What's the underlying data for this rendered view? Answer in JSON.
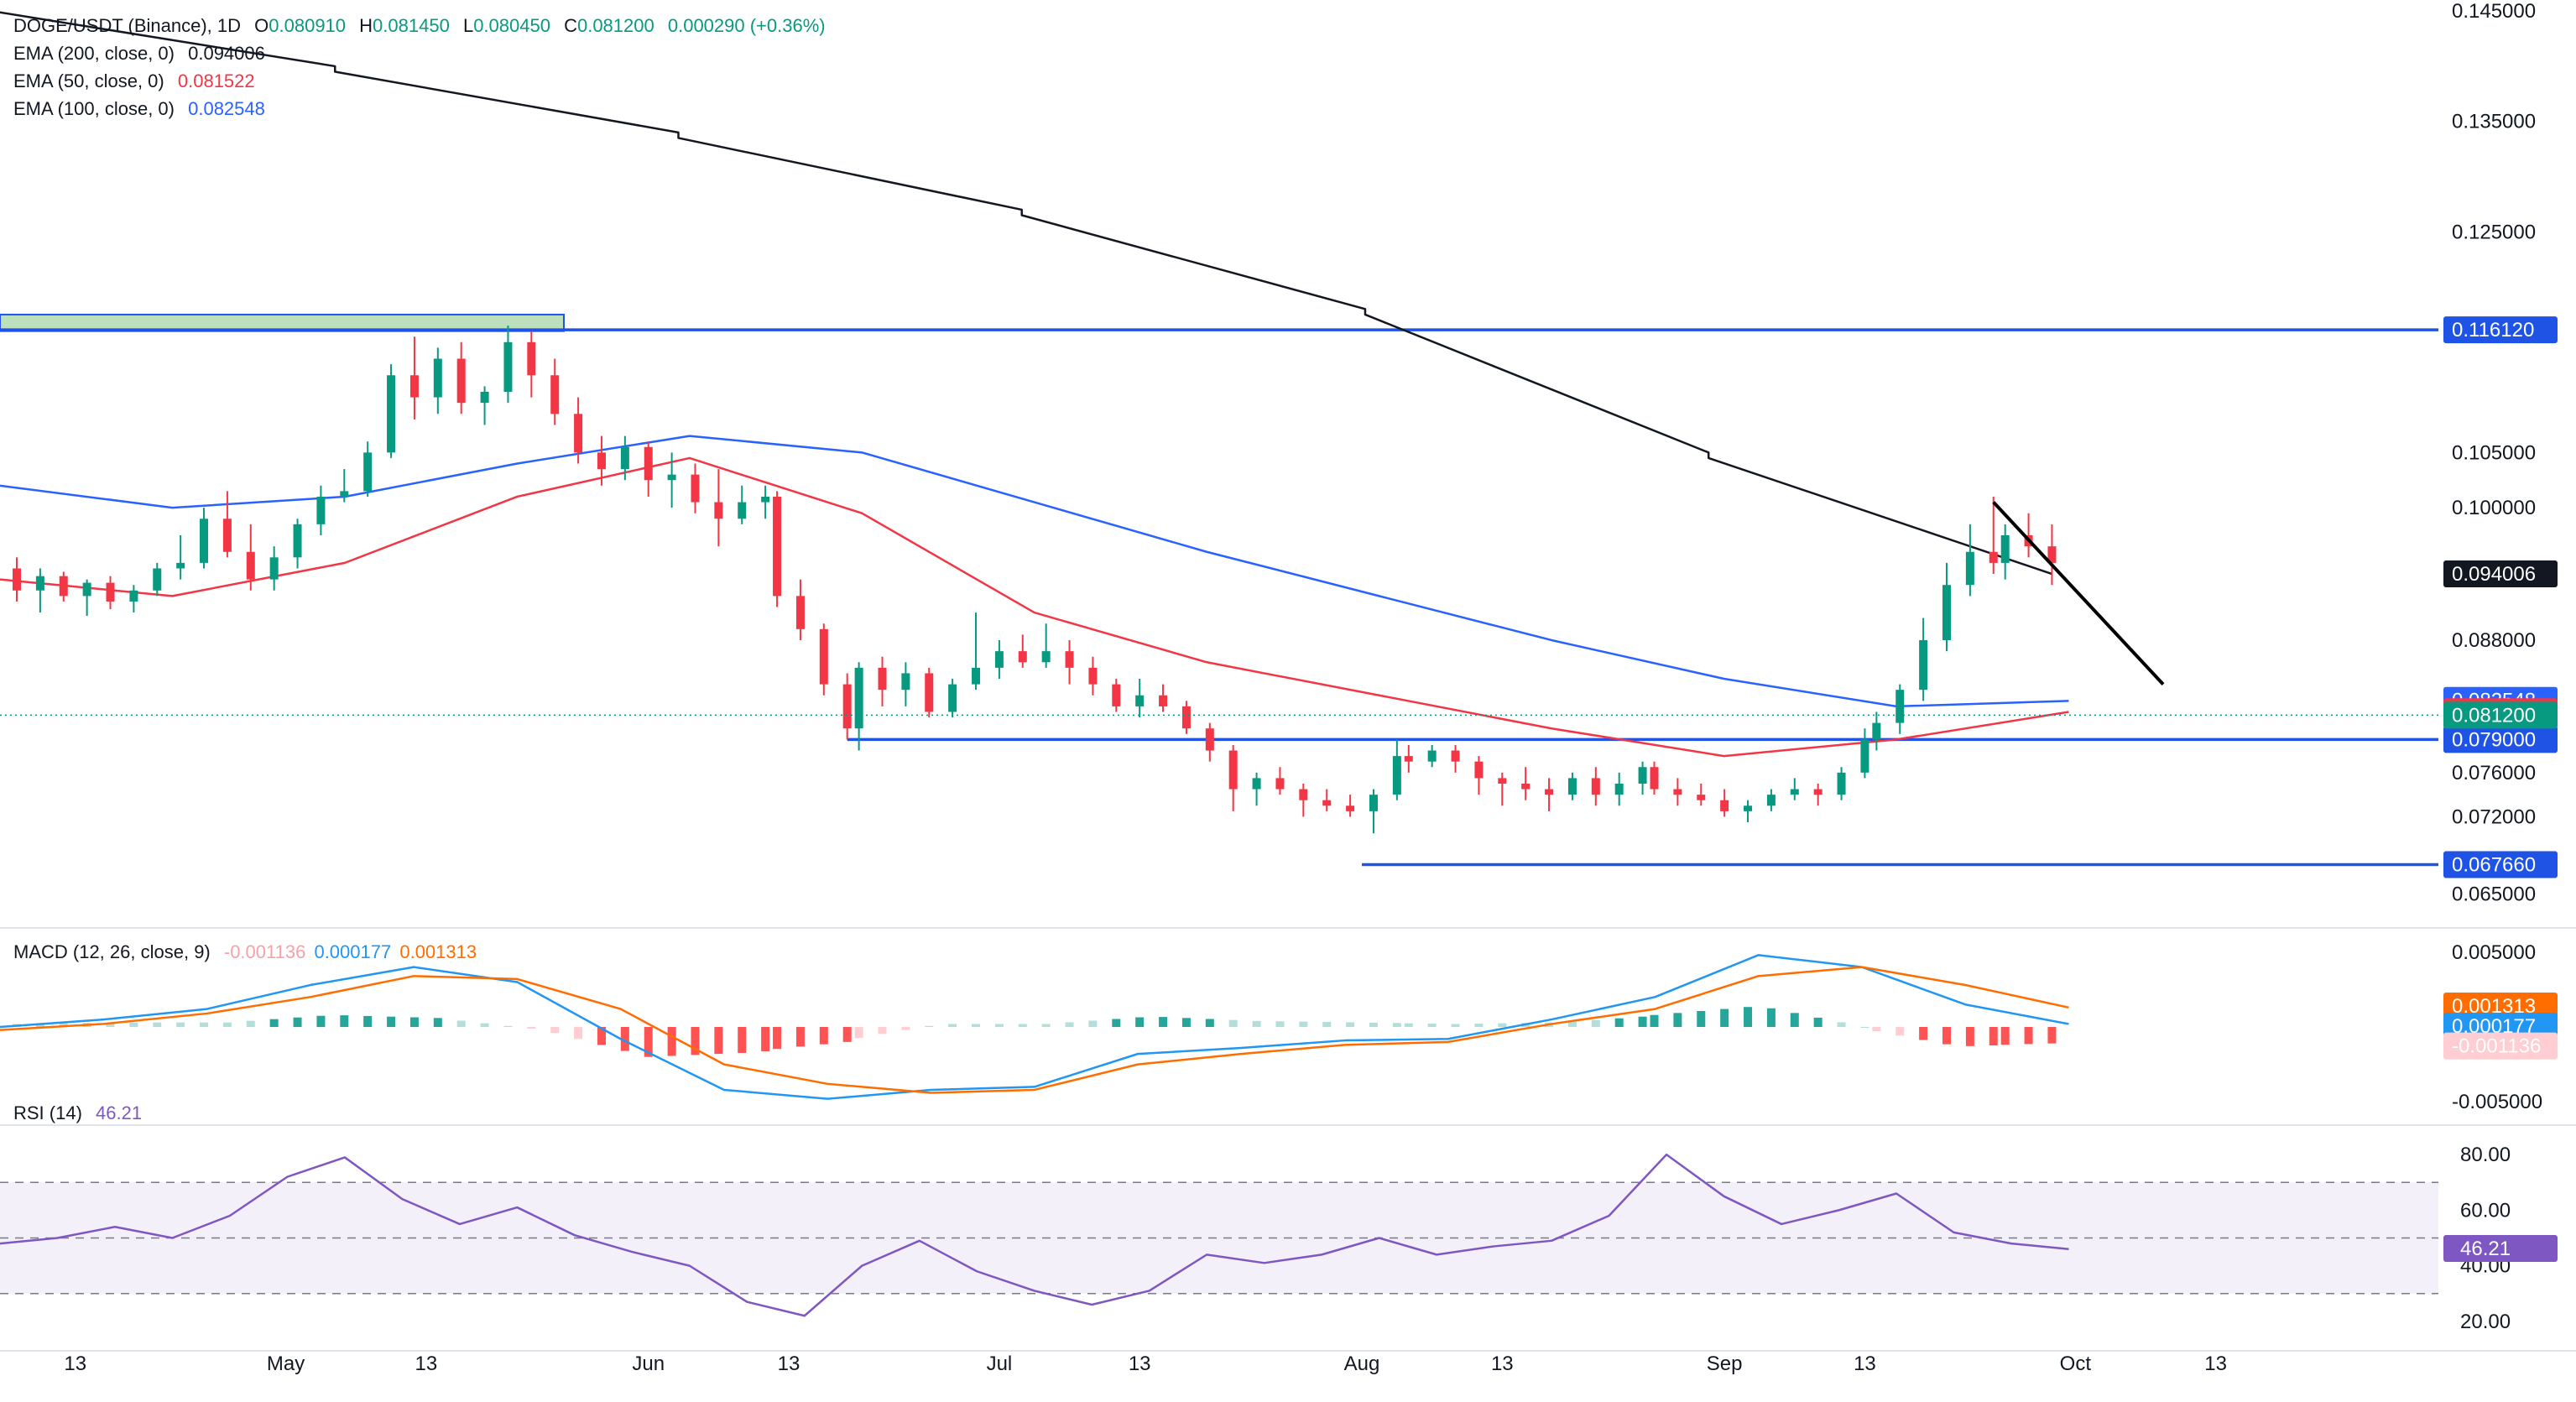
{
  "header": {
    "symbol": "DOGE/USDT (Binance), 1D",
    "o_label": "O",
    "o_value": "0.080910",
    "h_label": "H",
    "h_value": "0.081450",
    "l_label": "L",
    "l_value": "0.080450",
    "c_label": "C",
    "c_value": "0.081200",
    "change": "0.000290 (+0.36%)"
  },
  "indicators": [
    {
      "label": "EMA (200, close, 0)",
      "value": "0.094006",
      "color": "#131722"
    },
    {
      "label": "EMA (50, close, 0)",
      "value": "0.081522",
      "color": "#f23645"
    },
    {
      "label": "EMA (100, close, 0)",
      "value": "0.082548",
      "color": "#2962ff"
    }
  ],
  "macd_legend": {
    "label": "MACD (12, 26, close, 9)",
    "hist": "-0.001136",
    "macd": "0.000177",
    "signal": "0.001313"
  },
  "rsi_legend": {
    "label": "RSI (14)",
    "value": "46.21"
  },
  "colors": {
    "up": "#089981",
    "down": "#f23645",
    "ema200": "#131722",
    "ema50": "#f23645",
    "ema100": "#2962ff",
    "level": "#1e53e5",
    "macd": "#2196f3",
    "signal": "#ff6d00",
    "rsi": "#7e57c2",
    "zone": "#a5d6a7"
  },
  "chart_data": [
    {
      "type": "candlestick",
      "title": "DOGE/USDT (Binance), 1D",
      "y_ticks": [
        "0.145000",
        "0.135000",
        "0.125000",
        "0.105000",
        "0.100000",
        "0.088000",
        "0.076000",
        "0.072000",
        "0.065000"
      ],
      "x_ticks": [
        "13",
        "May",
        "13",
        "Jun",
        "13",
        "Jul",
        "13",
        "Aug",
        "13",
        "Sep",
        "13",
        "Oct",
        "13"
      ],
      "x_tick_dates": [
        "2024-04-13",
        "2024-05-01",
        "2024-05-13",
        "2024-06-01",
        "2024-06-13",
        "2024-07-01",
        "2024-07-13",
        "2024-08-01",
        "2024-08-13",
        "2024-09-01",
        "2024-09-13",
        "2024-10-01",
        "2024-10-13"
      ],
      "x_range": [
        "2024-04-08",
        "2024-10-23"
      ],
      "y_range": [
        0.062,
        0.146
      ],
      "ohlc_columns": [
        "date",
        "open",
        "high",
        "low",
        "close"
      ],
      "ohlc": [
        [
          "2024-04-08",
          0.0945,
          0.0955,
          0.0915,
          0.0925
        ],
        [
          "2024-04-10",
          0.0925,
          0.0945,
          0.0905,
          0.0938
        ],
        [
          "2024-04-12",
          0.0938,
          0.0942,
          0.0915,
          0.092
        ],
        [
          "2024-04-14",
          0.092,
          0.0935,
          0.0902,
          0.0932
        ],
        [
          "2024-04-16",
          0.0932,
          0.0938,
          0.0908,
          0.0915
        ],
        [
          "2024-04-18",
          0.0915,
          0.093,
          0.0905,
          0.0925
        ],
        [
          "2024-04-20",
          0.0925,
          0.095,
          0.092,
          0.0945
        ],
        [
          "2024-04-22",
          0.0945,
          0.0975,
          0.0935,
          0.095
        ],
        [
          "2024-04-24",
          0.095,
          0.1,
          0.0945,
          0.099
        ],
        [
          "2024-04-26",
          0.099,
          0.1015,
          0.0955,
          0.096
        ],
        [
          "2024-04-28",
          0.096,
          0.0985,
          0.0925,
          0.0935
        ],
        [
          "2024-04-30",
          0.0935,
          0.0965,
          0.0925,
          0.0955
        ],
        [
          "2024-05-02",
          0.0955,
          0.099,
          0.0945,
          0.0985
        ],
        [
          "2024-05-04",
          0.0985,
          0.102,
          0.0975,
          0.101
        ],
        [
          "2024-05-06",
          0.101,
          0.1035,
          0.1005,
          0.1015
        ],
        [
          "2024-05-08",
          0.1015,
          0.106,
          0.101,
          0.105
        ],
        [
          "2024-05-10",
          0.105,
          0.113,
          0.1045,
          0.112
        ],
        [
          "2024-05-12",
          0.112,
          0.1155,
          0.108,
          0.11
        ],
        [
          "2024-05-14",
          0.11,
          0.1145,
          0.1085,
          0.1135
        ],
        [
          "2024-05-16",
          0.1135,
          0.115,
          0.1085,
          0.1095
        ],
        [
          "2024-05-18",
          0.1095,
          0.111,
          0.1075,
          0.1105
        ],
        [
          "2024-05-20",
          0.1105,
          0.1165,
          0.1095,
          0.115
        ],
        [
          "2024-05-22",
          0.115,
          0.116,
          0.11,
          0.112
        ],
        [
          "2024-05-24",
          0.112,
          0.1135,
          0.1075,
          0.1085
        ],
        [
          "2024-05-26",
          0.1085,
          0.11,
          0.104,
          0.105
        ],
        [
          "2024-05-28",
          0.105,
          0.1065,
          0.102,
          0.1035
        ],
        [
          "2024-05-30",
          0.1035,
          0.1065,
          0.1025,
          0.1055
        ],
        [
          "2024-06-01",
          0.1055,
          0.106,
          0.101,
          0.1025
        ],
        [
          "2024-06-03",
          0.1025,
          0.105,
          0.1,
          0.103
        ],
        [
          "2024-06-05",
          0.103,
          0.104,
          0.0995,
          0.1005
        ],
        [
          "2024-06-07",
          0.1005,
          0.1035,
          0.0965,
          0.099
        ],
        [
          "2024-06-09",
          0.099,
          0.102,
          0.0985,
          0.1005
        ],
        [
          "2024-06-11",
          0.1005,
          0.102,
          0.099,
          0.101
        ],
        [
          "2024-06-12",
          0.101,
          0.1015,
          0.091,
          0.092
        ],
        [
          "2024-06-14",
          0.092,
          0.0935,
          0.088,
          0.089
        ],
        [
          "2024-06-16",
          0.089,
          0.0895,
          0.083,
          0.084
        ],
        [
          "2024-06-18",
          0.084,
          0.085,
          0.079,
          0.08
        ],
        [
          "2024-06-19",
          0.08,
          0.086,
          0.078,
          0.0855
        ],
        [
          "2024-06-21",
          0.0855,
          0.0865,
          0.082,
          0.0835
        ],
        [
          "2024-06-23",
          0.0835,
          0.086,
          0.082,
          0.085
        ],
        [
          "2024-06-25",
          0.085,
          0.0855,
          0.081,
          0.0815
        ],
        [
          "2024-06-27",
          0.0815,
          0.0845,
          0.081,
          0.084
        ],
        [
          "2024-06-29",
          0.084,
          0.0905,
          0.0835,
          0.0855
        ],
        [
          "2024-07-01",
          0.0855,
          0.088,
          0.0845,
          0.087
        ],
        [
          "2024-07-03",
          0.087,
          0.0885,
          0.0855,
          0.086
        ],
        [
          "2024-07-05",
          0.086,
          0.0895,
          0.0855,
          0.087
        ],
        [
          "2024-07-07",
          0.087,
          0.088,
          0.084,
          0.0855
        ],
        [
          "2024-07-09",
          0.0855,
          0.0865,
          0.083,
          0.084
        ],
        [
          "2024-07-11",
          0.084,
          0.0845,
          0.0815,
          0.082
        ],
        [
          "2024-07-13",
          0.082,
          0.0845,
          0.081,
          0.083
        ],
        [
          "2024-07-15",
          0.083,
          0.084,
          0.0815,
          0.082
        ],
        [
          "2024-07-17",
          0.082,
          0.0825,
          0.0795,
          0.08
        ],
        [
          "2024-07-19",
          0.08,
          0.0805,
          0.077,
          0.078
        ],
        [
          "2024-07-21",
          0.078,
          0.0785,
          0.0725,
          0.0745
        ],
        [
          "2024-07-23",
          0.0745,
          0.076,
          0.073,
          0.0755
        ],
        [
          "2024-07-25",
          0.0755,
          0.0765,
          0.074,
          0.0745
        ],
        [
          "2024-07-27",
          0.0745,
          0.075,
          0.072,
          0.0735
        ],
        [
          "2024-07-29",
          0.0735,
          0.0745,
          0.0725,
          0.073
        ],
        [
          "2024-07-31",
          0.073,
          0.074,
          0.072,
          0.0725
        ],
        [
          "2024-08-02",
          0.0725,
          0.0745,
          0.0705,
          0.074
        ],
        [
          "2024-08-04",
          0.074,
          0.079,
          0.0735,
          0.0775
        ],
        [
          "2024-08-05",
          0.0775,
          0.0785,
          0.076,
          0.077
        ],
        [
          "2024-08-07",
          0.077,
          0.0785,
          0.0765,
          0.078
        ],
        [
          "2024-08-09",
          0.078,
          0.0785,
          0.076,
          0.077
        ],
        [
          "2024-08-11",
          0.077,
          0.0775,
          0.074,
          0.0755
        ],
        [
          "2024-08-13",
          0.0755,
          0.076,
          0.073,
          0.075
        ],
        [
          "2024-08-15",
          0.075,
          0.0765,
          0.0735,
          0.0745
        ],
        [
          "2024-08-17",
          0.0745,
          0.0755,
          0.0725,
          0.074
        ],
        [
          "2024-08-19",
          0.074,
          0.076,
          0.0735,
          0.0755
        ],
        [
          "2024-08-21",
          0.0755,
          0.0765,
          0.073,
          0.074
        ],
        [
          "2024-08-23",
          0.074,
          0.076,
          0.073,
          0.075
        ],
        [
          "2024-08-25",
          0.075,
          0.077,
          0.074,
          0.0765
        ],
        [
          "2024-08-26",
          0.0765,
          0.077,
          0.074,
          0.0745
        ],
        [
          "2024-08-28",
          0.0745,
          0.0755,
          0.073,
          0.074
        ],
        [
          "2024-08-30",
          0.074,
          0.075,
          0.073,
          0.0735
        ],
        [
          "2024-09-01",
          0.0735,
          0.0745,
          0.072,
          0.0725
        ],
        [
          "2024-09-03",
          0.0725,
          0.0735,
          0.0715,
          0.073
        ],
        [
          "2024-09-05",
          0.073,
          0.0745,
          0.0725,
          0.074
        ],
        [
          "2024-09-07",
          0.074,
          0.0755,
          0.0735,
          0.0745
        ],
        [
          "2024-09-09",
          0.0745,
          0.075,
          0.073,
          0.074
        ],
        [
          "2024-09-11",
          0.074,
          0.0765,
          0.0735,
          0.076
        ],
        [
          "2024-09-13",
          0.076,
          0.08,
          0.0755,
          0.079
        ],
        [
          "2024-09-14",
          0.079,
          0.0815,
          0.078,
          0.0805
        ],
        [
          "2024-09-16",
          0.0805,
          0.084,
          0.0795,
          0.0835
        ],
        [
          "2024-09-18",
          0.0835,
          0.09,
          0.0825,
          0.088
        ],
        [
          "2024-09-20",
          0.088,
          0.095,
          0.087,
          0.093
        ],
        [
          "2024-09-22",
          0.093,
          0.0985,
          0.092,
          0.096
        ],
        [
          "2024-09-24",
          0.096,
          0.101,
          0.094,
          0.095
        ],
        [
          "2024-09-25",
          0.095,
          0.0985,
          0.0935,
          0.0975
        ],
        [
          "2024-09-27",
          0.0975,
          0.0995,
          0.0955,
          0.0965
        ],
        [
          "2024-09-29",
          0.0965,
          0.0985,
          0.093,
          0.095
        ]
      ],
      "ema200": [
        [
          0.145,
          0.14
        ],
        [
          0.1395,
          0.134
        ],
        [
          0.1335,
          0.127
        ],
        [
          0.1265,
          0.118
        ],
        [
          0.1175,
          0.105
        ],
        [
          0.1045,
          0.094
        ]
      ],
      "ema50": [
        0.0935,
        0.092,
        0.095,
        0.101,
        0.1045,
        0.0995,
        0.0905,
        0.086,
        0.083,
        0.08,
        0.0775,
        0.079,
        0.0815
      ],
      "ema100": [
        0.102,
        0.1,
        0.101,
        0.104,
        0.1065,
        0.105,
        0.1005,
        0.096,
        0.092,
        0.088,
        0.0845,
        0.082,
        0.0825
      ],
      "levels": [
        0.11612,
        0.079,
        0.06766
      ],
      "level_labels": [
        "0.116120",
        "0.079000",
        "0.067660"
      ],
      "zone": [
        0.116,
        0.1175
      ],
      "trendline": [
        [
          0.1005
        ],
        [
          0.084
        ]
      ],
      "last_values": {
        "ema200": "0.094006",
        "ema100": "0.082548",
        "ema50": "0.081522",
        "close": "0.081200"
      }
    },
    {
      "type": "line",
      "title": "MACD (12, 26, close, 9)",
      "y_ticks": [
        "0.005000",
        "-0.005000"
      ],
      "y_range": [
        -0.0065,
        0.0065
      ],
      "macd": [
        0.0,
        0.0005,
        0.0012,
        0.0028,
        0.004,
        0.003,
        -0.0008,
        -0.0042,
        -0.0048,
        -0.0042,
        -0.004,
        -0.0018,
        -0.0014,
        -0.0009,
        -0.0008,
        0.0005,
        0.002,
        0.0048,
        0.004,
        0.0015,
        0.0002
      ],
      "signal": [
        -0.0002,
        0.0002,
        0.0009,
        0.002,
        0.0034,
        0.0032,
        0.0012,
        -0.0025,
        -0.0038,
        -0.0044,
        -0.0042,
        -0.0025,
        -0.0018,
        -0.0012,
        -0.001,
        0.0002,
        0.0012,
        0.0034,
        0.004,
        0.0028,
        0.0013
      ],
      "histogram": [
        0.0002,
        0.0003,
        0.0003,
        0.0008,
        0.0006,
        -0.0002,
        -0.002,
        -0.0017,
        -0.001,
        0.0002,
        0.0002,
        0.0007,
        0.0004,
        0.0003,
        0.0002,
        0.0003,
        0.0008,
        0.0014,
        0.0,
        -0.0013,
        -0.0011
      ],
      "last_values": {
        "signal": "0.001313",
        "macd": "0.000177",
        "hist": "-0.001136"
      }
    },
    {
      "type": "line",
      "title": "RSI (14)",
      "y_ticks": [
        "80.00",
        "60.00",
        "40.00",
        "20.00"
      ],
      "y_range": [
        10,
        90
      ],
      "bands": [
        70,
        50,
        30
      ],
      "rsi": [
        48,
        50,
        54,
        50,
        58,
        72,
        79,
        64,
        55,
        61,
        51,
        45,
        40,
        27,
        22,
        40,
        49,
        38,
        31,
        26,
        31,
        44,
        41,
        44,
        50,
        44,
        47,
        49,
        58,
        80,
        65,
        55,
        60,
        66,
        52,
        48,
        46
      ],
      "last_values": {
        "rsi": "46.21"
      }
    }
  ]
}
